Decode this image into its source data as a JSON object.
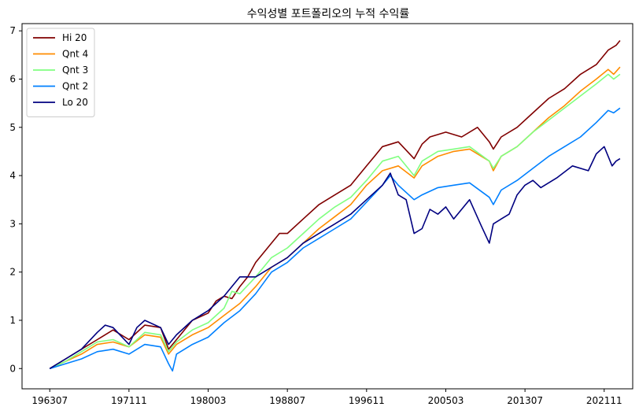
{
  "chart_data": {
    "type": "line",
    "title": "수익성별 포트폴리오의 누적 수익률",
    "xlabel": "",
    "ylabel": "",
    "x_tick_labels": [
      "196307",
      "197111",
      "198003",
      "198807",
      "199611",
      "200503",
      "201307",
      "202111"
    ],
    "x_tick_positions": [
      0,
      100,
      200,
      300,
      400,
      500,
      600,
      700
    ],
    "xlim": [
      -35,
      736
    ],
    "y_ticks": [
      "0",
      "1",
      "2",
      "3",
      "4",
      "5",
      "6",
      "7"
    ],
    "ylim": [
      -0.42,
      7.15
    ],
    "legend_position": "upper-left",
    "grid": false,
    "series": [
      {
        "name": "Hi 20",
        "color": "#800000",
        "points": [
          [
            0,
            0.0
          ],
          [
            20,
            0.2
          ],
          [
            40,
            0.4
          ],
          [
            60,
            0.6
          ],
          [
            80,
            0.8
          ],
          [
            100,
            0.6
          ],
          [
            120,
            0.9
          ],
          [
            140,
            0.85
          ],
          [
            150,
            0.4
          ],
          [
            160,
            0.6
          ],
          [
            180,
            1.0
          ],
          [
            200,
            1.15
          ],
          [
            210,
            1.4
          ],
          [
            220,
            1.5
          ],
          [
            230,
            1.45
          ],
          [
            240,
            1.7
          ],
          [
            250,
            1.9
          ],
          [
            260,
            2.2
          ],
          [
            280,
            2.6
          ],
          [
            290,
            2.8
          ],
          [
            300,
            2.8
          ],
          [
            320,
            3.1
          ],
          [
            340,
            3.4
          ],
          [
            360,
            3.6
          ],
          [
            380,
            3.8
          ],
          [
            400,
            4.2
          ],
          [
            410,
            4.4
          ],
          [
            420,
            4.6
          ],
          [
            440,
            4.7
          ],
          [
            460,
            4.35
          ],
          [
            470,
            4.65
          ],
          [
            480,
            4.8
          ],
          [
            500,
            4.9
          ],
          [
            520,
            4.8
          ],
          [
            540,
            5.0
          ],
          [
            555,
            4.7
          ],
          [
            560,
            4.55
          ],
          [
            570,
            4.8
          ],
          [
            590,
            5.0
          ],
          [
            610,
            5.3
          ],
          [
            630,
            5.6
          ],
          [
            650,
            5.8
          ],
          [
            670,
            6.1
          ],
          [
            690,
            6.3
          ],
          [
            705,
            6.6
          ],
          [
            715,
            6.7
          ],
          [
            720,
            6.8
          ]
        ]
      },
      {
        "name": "Qnt 4",
        "color": "#ff8c00",
        "points": [
          [
            0,
            0.0
          ],
          [
            20,
            0.15
          ],
          [
            40,
            0.3
          ],
          [
            60,
            0.5
          ],
          [
            80,
            0.55
          ],
          [
            100,
            0.45
          ],
          [
            120,
            0.7
          ],
          [
            140,
            0.65
          ],
          [
            150,
            0.3
          ],
          [
            160,
            0.5
          ],
          [
            180,
            0.7
          ],
          [
            200,
            0.85
          ],
          [
            220,
            1.1
          ],
          [
            240,
            1.35
          ],
          [
            260,
            1.7
          ],
          [
            280,
            2.1
          ],
          [
            300,
            2.3
          ],
          [
            320,
            2.6
          ],
          [
            340,
            2.9
          ],
          [
            360,
            3.15
          ],
          [
            380,
            3.4
          ],
          [
            400,
            3.8
          ],
          [
            420,
            4.1
          ],
          [
            440,
            4.2
          ],
          [
            460,
            3.95
          ],
          [
            470,
            4.2
          ],
          [
            490,
            4.4
          ],
          [
            510,
            4.5
          ],
          [
            530,
            4.55
          ],
          [
            555,
            4.3
          ],
          [
            560,
            4.1
          ],
          [
            570,
            4.4
          ],
          [
            590,
            4.6
          ],
          [
            610,
            4.9
          ],
          [
            630,
            5.2
          ],
          [
            650,
            5.45
          ],
          [
            670,
            5.75
          ],
          [
            690,
            6.0
          ],
          [
            705,
            6.2
          ],
          [
            712,
            6.1
          ],
          [
            720,
            6.25
          ]
        ]
      },
      {
        "name": "Qnt 3",
        "color": "#80ff80",
        "points": [
          [
            0,
            0.0
          ],
          [
            20,
            0.15
          ],
          [
            40,
            0.35
          ],
          [
            60,
            0.55
          ],
          [
            80,
            0.6
          ],
          [
            100,
            0.45
          ],
          [
            120,
            0.75
          ],
          [
            140,
            0.7
          ],
          [
            150,
            0.35
          ],
          [
            160,
            0.55
          ],
          [
            180,
            0.8
          ],
          [
            200,
            0.95
          ],
          [
            220,
            1.25
          ],
          [
            230,
            1.6
          ],
          [
            240,
            1.55
          ],
          [
            260,
            1.9
          ],
          [
            280,
            2.3
          ],
          [
            300,
            2.5
          ],
          [
            320,
            2.8
          ],
          [
            340,
            3.1
          ],
          [
            360,
            3.35
          ],
          [
            380,
            3.55
          ],
          [
            400,
            3.9
          ],
          [
            420,
            4.3
          ],
          [
            440,
            4.4
          ],
          [
            460,
            4.0
          ],
          [
            470,
            4.3
          ],
          [
            490,
            4.5
          ],
          [
            510,
            4.55
          ],
          [
            530,
            4.6
          ],
          [
            555,
            4.3
          ],
          [
            560,
            4.15
          ],
          [
            570,
            4.4
          ],
          [
            590,
            4.6
          ],
          [
            610,
            4.9
          ],
          [
            630,
            5.15
          ],
          [
            650,
            5.4
          ],
          [
            670,
            5.65
          ],
          [
            690,
            5.9
          ],
          [
            705,
            6.1
          ],
          [
            712,
            6.0
          ],
          [
            720,
            6.1
          ]
        ]
      },
      {
        "name": "Qnt 2",
        "color": "#0080ff",
        "points": [
          [
            0,
            0.0
          ],
          [
            20,
            0.1
          ],
          [
            40,
            0.2
          ],
          [
            60,
            0.35
          ],
          [
            80,
            0.4
          ],
          [
            100,
            0.3
          ],
          [
            120,
            0.5
          ],
          [
            140,
            0.45
          ],
          [
            150,
            0.1
          ],
          [
            155,
            -0.05
          ],
          [
            160,
            0.3
          ],
          [
            180,
            0.5
          ],
          [
            200,
            0.65
          ],
          [
            220,
            0.95
          ],
          [
            240,
            1.2
          ],
          [
            260,
            1.55
          ],
          [
            280,
            2.0
          ],
          [
            300,
            2.2
          ],
          [
            320,
            2.5
          ],
          [
            340,
            2.7
          ],
          [
            360,
            2.9
          ],
          [
            380,
            3.1
          ],
          [
            400,
            3.45
          ],
          [
            420,
            3.8
          ],
          [
            430,
            4.0
          ],
          [
            440,
            3.8
          ],
          [
            460,
            3.5
          ],
          [
            470,
            3.6
          ],
          [
            490,
            3.75
          ],
          [
            510,
            3.8
          ],
          [
            530,
            3.85
          ],
          [
            555,
            3.55
          ],
          [
            560,
            3.4
          ],
          [
            570,
            3.7
          ],
          [
            590,
            3.9
          ],
          [
            610,
            4.15
          ],
          [
            630,
            4.4
          ],
          [
            650,
            4.6
          ],
          [
            670,
            4.8
          ],
          [
            690,
            5.1
          ],
          [
            705,
            5.35
          ],
          [
            712,
            5.3
          ],
          [
            720,
            5.4
          ]
        ]
      },
      {
        "name": "Lo 20",
        "color": "#000080",
        "points": [
          [
            0,
            0.0
          ],
          [
            20,
            0.2
          ],
          [
            40,
            0.4
          ],
          [
            60,
            0.75
          ],
          [
            70,
            0.9
          ],
          [
            80,
            0.85
          ],
          [
            100,
            0.5
          ],
          [
            110,
            0.85
          ],
          [
            120,
            1.0
          ],
          [
            140,
            0.85
          ],
          [
            150,
            0.5
          ],
          [
            160,
            0.7
          ],
          [
            180,
            1.0
          ],
          [
            200,
            1.2
          ],
          [
            220,
            1.5
          ],
          [
            240,
            1.9
          ],
          [
            260,
            1.9
          ],
          [
            280,
            2.1
          ],
          [
            300,
            2.3
          ],
          [
            320,
            2.6
          ],
          [
            340,
            2.8
          ],
          [
            360,
            3.0
          ],
          [
            380,
            3.2
          ],
          [
            400,
            3.5
          ],
          [
            420,
            3.8
          ],
          [
            430,
            4.05
          ],
          [
            440,
            3.6
          ],
          [
            450,
            3.5
          ],
          [
            460,
            2.8
          ],
          [
            470,
            2.9
          ],
          [
            480,
            3.3
          ],
          [
            490,
            3.2
          ],
          [
            500,
            3.35
          ],
          [
            510,
            3.1
          ],
          [
            530,
            3.5
          ],
          [
            545,
            2.95
          ],
          [
            555,
            2.6
          ],
          [
            560,
            3.0
          ],
          [
            570,
            3.1
          ],
          [
            580,
            3.2
          ],
          [
            590,
            3.6
          ],
          [
            600,
            3.8
          ],
          [
            610,
            3.9
          ],
          [
            620,
            3.75
          ],
          [
            640,
            3.95
          ],
          [
            660,
            4.2
          ],
          [
            680,
            4.1
          ],
          [
            690,
            4.45
          ],
          [
            700,
            4.6
          ],
          [
            705,
            4.4
          ],
          [
            710,
            4.2
          ],
          [
            715,
            4.3
          ],
          [
            720,
            4.35
          ]
        ]
      }
    ]
  }
}
